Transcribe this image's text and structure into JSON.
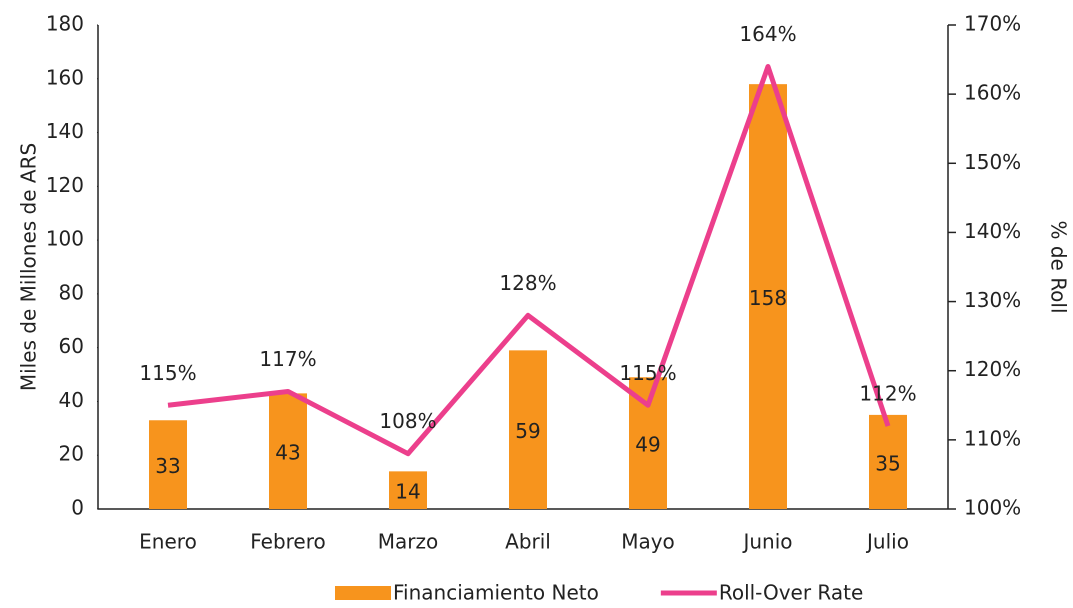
{
  "chart_data": {
    "type": "bar",
    "categories": [
      "Enero",
      "Febrero",
      "Marzo",
      "Abril",
      "Mayo",
      "Junio",
      "Julio"
    ],
    "series": [
      {
        "name": "Financiamiento Neto",
        "type": "bar",
        "color": "#f7941d",
        "values": [
          33,
          43,
          14,
          59,
          49,
          158,
          35
        ]
      },
      {
        "name": "Roll-Over Rate",
        "type": "line",
        "axis": "y2",
        "color": "#ec3f8c",
        "values": [
          115,
          117,
          108,
          128,
          115,
          164,
          112
        ],
        "value_labels": [
          "115%",
          "117%",
          "108%",
          "128%",
          "115%",
          "164%",
          "112%"
        ]
      }
    ],
    "ylabel": "Miles de Millones de ARS",
    "y2label": "% de Roll",
    "ylim": [
      0,
      180
    ],
    "yticks": [
      0,
      20,
      40,
      60,
      80,
      100,
      120,
      140,
      160,
      180
    ],
    "y2lim": [
      100,
      170
    ],
    "y2ticks": [
      {
        "value": 100,
        "label": "100%"
      },
      {
        "value": 110,
        "label": "110%"
      },
      {
        "value": 120,
        "label": "120%"
      },
      {
        "value": 130,
        "label": "130%"
      },
      {
        "value": 140,
        "label": "140%"
      },
      {
        "value": 150,
        "label": "150%"
      },
      {
        "value": 160,
        "label": "160%"
      },
      {
        "value": 170,
        "label": "170%"
      }
    ],
    "legend": "bottom"
  }
}
